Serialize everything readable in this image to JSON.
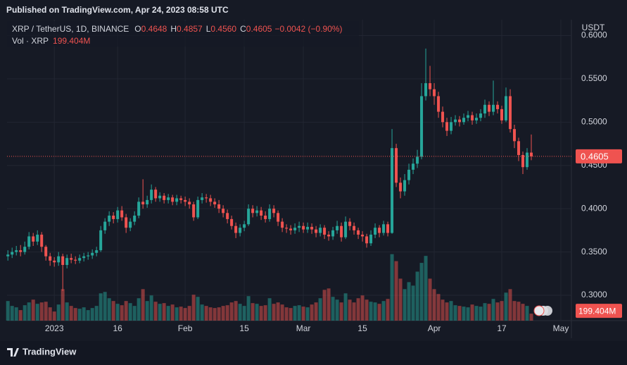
{
  "header": {
    "published": "Published on TradingView.com, Apr 24, 2023 08:58 UTC",
    "logo": "TradingView"
  },
  "chart_data": {
    "type": "candlestick",
    "symbol": "XRP / TetherUS, 1D, BINANCE",
    "ohlc_legend": [
      {
        "key": "O",
        "value": "0.4648"
      },
      {
        "key": "H",
        "value": "0.4857"
      },
      {
        "key": "L",
        "value": "0.4560"
      },
      {
        "key": "C",
        "value": "0.4605"
      }
    ],
    "change_label": "−0.0042 (−0.90%)",
    "volume_name": "Vol · XRP",
    "volume_label": "199.404M",
    "y_unit": "USDT",
    "up_color": "#26a69a",
    "down_color": "#ef5350",
    "volume_up_color": "rgba(38,166,154,0.5)",
    "volume_down_color": "rgba(239,83,80,0.5)",
    "grid": true,
    "xlim": [
      -0.2,
      133.5
    ],
    "xticks": [
      {
        "value": 11,
        "label": "2023"
      },
      {
        "value": 26,
        "label": "16"
      },
      {
        "value": 42,
        "label": "Feb"
      },
      {
        "value": 56,
        "label": "15"
      },
      {
        "value": 70,
        "label": "Mar"
      },
      {
        "value": 84,
        "label": "15"
      },
      {
        "value": 101,
        "label": "Apr"
      },
      {
        "value": 117,
        "label": "17"
      },
      {
        "value": 131,
        "label": "May"
      }
    ],
    "ylim": [
      0.2707,
      0.6183
    ],
    "yticks": [
      {
        "value": 0.3,
        "label": "0.3000"
      },
      {
        "value": 0.35,
        "label": "0.3500"
      },
      {
        "value": 0.4,
        "label": "0.4000"
      },
      {
        "value": 0.45,
        "label": "0.4500"
      },
      {
        "value": 0.5,
        "label": "0.5000"
      },
      {
        "value": 0.55,
        "label": "0.5500"
      },
      {
        "value": 0.6,
        "label": "0.6000"
      }
    ],
    "vlim": [
      0,
      8600
    ],
    "open": [
      0.345,
      0.347,
      0.35,
      0.352,
      0.35,
      0.356,
      0.368,
      0.362,
      0.37,
      0.356,
      0.345,
      0.34,
      0.338,
      0.345,
      0.335,
      0.343,
      0.341,
      0.34,
      0.343,
      0.345,
      0.346,
      0.349,
      0.352,
      0.375,
      0.385,
      0.392,
      0.388,
      0.398,
      0.39,
      0.378,
      0.385,
      0.392,
      0.408,
      0.405,
      0.41,
      0.422,
      0.412,
      0.415,
      0.41,
      0.413,
      0.408,
      0.412,
      0.41,
      0.408,
      0.405,
      0.39,
      0.41,
      0.413,
      0.412,
      0.408,
      0.405,
      0.4,
      0.395,
      0.388,
      0.38,
      0.372,
      0.378,
      0.382,
      0.4,
      0.395,
      0.398,
      0.392,
      0.388,
      0.4,
      0.395,
      0.385,
      0.378,
      0.377,
      0.375,
      0.378,
      0.38,
      0.376,
      0.379,
      0.376,
      0.372,
      0.378,
      0.37,
      0.368,
      0.375,
      0.38,
      0.367,
      0.385,
      0.38,
      0.375,
      0.37,
      0.368,
      0.36,
      0.37,
      0.378,
      0.372,
      0.382,
      0.372,
      0.47,
      0.43,
      0.42,
      0.433,
      0.445,
      0.452,
      0.46,
      0.53,
      0.545,
      0.538,
      0.53,
      0.512,
      0.5,
      0.49,
      0.5,
      0.503,
      0.5,
      0.505,
      0.508,
      0.502,
      0.505,
      0.51,
      0.52,
      0.512,
      0.52,
      0.515,
      0.502,
      0.53,
      0.492,
      0.478,
      0.462,
      0.448,
      0.4648
    ],
    "high": [
      0.352,
      0.355,
      0.357,
      0.358,
      0.362,
      0.373,
      0.372,
      0.375,
      0.373,
      0.358,
      0.349,
      0.344,
      0.35,
      0.348,
      0.347,
      0.348,
      0.345,
      0.347,
      0.349,
      0.35,
      0.353,
      0.356,
      0.38,
      0.389,
      0.397,
      0.396,
      0.402,
      0.403,
      0.394,
      0.389,
      0.397,
      0.413,
      0.434,
      0.415,
      0.428,
      0.425,
      0.419,
      0.418,
      0.417,
      0.416,
      0.416,
      0.415,
      0.414,
      0.412,
      0.408,
      0.414,
      0.418,
      0.417,
      0.416,
      0.412,
      0.41,
      0.404,
      0.399,
      0.392,
      0.384,
      0.382,
      0.386,
      0.405,
      0.404,
      0.403,
      0.402,
      0.397,
      0.405,
      0.404,
      0.398,
      0.389,
      0.382,
      0.381,
      0.383,
      0.385,
      0.384,
      0.384,
      0.383,
      0.38,
      0.382,
      0.381,
      0.374,
      0.379,
      0.386,
      0.384,
      0.391,
      0.389,
      0.384,
      0.378,
      0.374,
      0.371,
      0.375,
      0.383,
      0.381,
      0.386,
      0.385,
      0.492,
      0.475,
      0.436,
      0.44,
      0.452,
      0.458,
      0.468,
      0.545,
      0.585,
      0.565,
      0.545,
      0.535,
      0.518,
      0.505,
      0.506,
      0.508,
      0.507,
      0.51,
      0.513,
      0.512,
      0.51,
      0.515,
      0.526,
      0.524,
      0.548,
      0.524,
      0.519,
      0.54,
      0.538,
      0.497,
      0.482,
      0.466,
      0.47,
      0.4857
    ],
    "low": [
      0.34,
      0.343,
      0.346,
      0.345,
      0.347,
      0.353,
      0.357,
      0.358,
      0.35,
      0.34,
      0.334,
      0.333,
      0.334,
      0.305,
      0.331,
      0.337,
      0.336,
      0.337,
      0.339,
      0.341,
      0.342,
      0.345,
      0.35,
      0.371,
      0.38,
      0.383,
      0.384,
      0.386,
      0.372,
      0.374,
      0.381,
      0.389,
      0.4,
      0.401,
      0.406,
      0.408,
      0.408,
      0.406,
      0.406,
      0.404,
      0.404,
      0.406,
      0.403,
      0.4,
      0.386,
      0.388,
      0.406,
      0.407,
      0.403,
      0.401,
      0.395,
      0.39,
      0.383,
      0.376,
      0.366,
      0.368,
      0.374,
      0.38,
      0.39,
      0.391,
      0.387,
      0.384,
      0.385,
      0.39,
      0.38,
      0.373,
      0.372,
      0.37,
      0.371,
      0.373,
      0.372,
      0.372,
      0.371,
      0.367,
      0.368,
      0.365,
      0.363,
      0.364,
      0.371,
      0.362,
      0.365,
      0.375,
      0.37,
      0.365,
      0.362,
      0.355,
      0.357,
      0.366,
      0.367,
      0.369,
      0.368,
      0.371,
      0.425,
      0.412,
      0.415,
      0.428,
      0.44,
      0.447,
      0.457,
      0.525,
      0.53,
      0.52,
      0.505,
      0.494,
      0.484,
      0.486,
      0.496,
      0.495,
      0.497,
      0.501,
      0.497,
      0.498,
      0.501,
      0.505,
      0.507,
      0.508,
      0.51,
      0.498,
      0.5,
      0.488,
      0.47,
      0.455,
      0.44,
      0.445,
      0.456
    ],
    "close": [
      0.347,
      0.35,
      0.352,
      0.35,
      0.356,
      0.368,
      0.362,
      0.37,
      0.356,
      0.345,
      0.34,
      0.338,
      0.345,
      0.335,
      0.343,
      0.341,
      0.34,
      0.343,
      0.345,
      0.346,
      0.349,
      0.352,
      0.375,
      0.385,
      0.392,
      0.388,
      0.398,
      0.39,
      0.378,
      0.385,
      0.392,
      0.408,
      0.405,
      0.41,
      0.422,
      0.412,
      0.415,
      0.41,
      0.413,
      0.408,
      0.412,
      0.41,
      0.408,
      0.405,
      0.39,
      0.41,
      0.413,
      0.412,
      0.408,
      0.405,
      0.4,
      0.395,
      0.388,
      0.38,
      0.372,
      0.378,
      0.382,
      0.4,
      0.395,
      0.398,
      0.392,
      0.388,
      0.4,
      0.395,
      0.385,
      0.378,
      0.377,
      0.375,
      0.378,
      0.38,
      0.376,
      0.379,
      0.376,
      0.372,
      0.378,
      0.37,
      0.368,
      0.375,
      0.38,
      0.367,
      0.385,
      0.38,
      0.375,
      0.37,
      0.368,
      0.36,
      0.37,
      0.378,
      0.372,
      0.382,
      0.372,
      0.47,
      0.43,
      0.42,
      0.433,
      0.445,
      0.452,
      0.46,
      0.53,
      0.545,
      0.538,
      0.53,
      0.512,
      0.5,
      0.49,
      0.5,
      0.503,
      0.5,
      0.505,
      0.508,
      0.502,
      0.505,
      0.51,
      0.52,
      0.512,
      0.52,
      0.515,
      0.502,
      0.53,
      0.492,
      0.478,
      0.462,
      0.448,
      0.4648,
      0.4605
    ],
    "volume": [
      560,
      420,
      380,
      300,
      440,
      520,
      600,
      480,
      520,
      540,
      380,
      260,
      460,
      900,
      520,
      420,
      360,
      340,
      380,
      300,
      360,
      420,
      780,
      820,
      640,
      560,
      480,
      440,
      560,
      500,
      420,
      640,
      900,
      560,
      720,
      540,
      480,
      500,
      420,
      460,
      380,
      400,
      360,
      420,
      740,
      680,
      460,
      420,
      380,
      360,
      380,
      420,
      440,
      520,
      560,
      480,
      420,
      700,
      500,
      480,
      420,
      440,
      640,
      480,
      520,
      460,
      380,
      360,
      420,
      440,
      400,
      380,
      460,
      520,
      640,
      880,
      920,
      680,
      600,
      520,
      780,
      600,
      520,
      640,
      720,
      600,
      540,
      520,
      480,
      560,
      620,
      1900,
      1700,
      1200,
      900,
      1100,
      1000,
      1400,
      1650,
      1850,
      1200,
      900,
      760,
      600,
      520,
      560,
      440,
      420,
      400,
      380,
      460,
      420,
      400,
      500,
      480,
      620,
      520,
      560,
      800,
      900,
      560,
      540,
      480,
      420,
      199.404
    ]
  }
}
